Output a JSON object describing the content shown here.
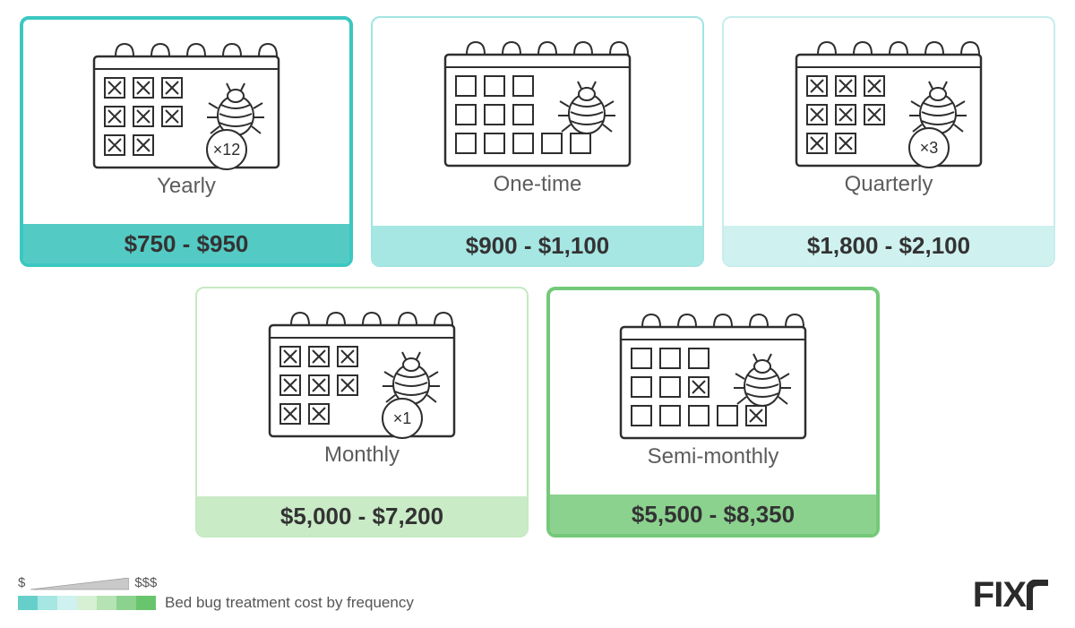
{
  "cards": [
    {
      "id": "yearly",
      "label": "Yearly",
      "price": "$750 - $950",
      "border_color": "#3bc7c1",
      "border_width": 4,
      "bar_color": "#54cac4",
      "multiplier": "×12",
      "day_pattern": "all_x"
    },
    {
      "id": "onetime",
      "label": "One-time",
      "price": "$900 - $1,100",
      "border_color": "#a1e4e1",
      "border_width": 2,
      "bar_color": "#a6e6e3",
      "multiplier": null,
      "day_pattern": "all_empty"
    },
    {
      "id": "quarterly",
      "label": "Quarterly",
      "price": "$1,800 - $2,100",
      "border_color": "#c6eeec",
      "border_width": 2,
      "bar_color": "#cff1ef",
      "multiplier": "×3",
      "day_pattern": "all_x"
    },
    {
      "id": "monthly",
      "label": "Monthly",
      "price": "$5,000 - $7,200",
      "border_color": "#c5e9c2",
      "border_width": 2,
      "bar_color": "#c9ebc6",
      "multiplier": "×1",
      "day_pattern": "all_x"
    },
    {
      "id": "semimonthly",
      "label": "Semi-monthly",
      "price": "$5,500 - $8,350",
      "border_color": "#74c979",
      "border_width": 4,
      "bar_color": "#8bd28f",
      "multiplier": null,
      "day_pattern": "semi"
    }
  ],
  "row_layout": [
    [
      0,
      1,
      2
    ],
    [
      3,
      4
    ]
  ],
  "legend": {
    "min": "$",
    "max": "$$$",
    "caption": "Bed bug treatment cost by frequency",
    "swatches": [
      "#67cfca",
      "#a6e6e3",
      "#cff1ef",
      "#d6f0d4",
      "#b6e3b3",
      "#8bd28f",
      "#69c56d"
    ]
  },
  "logo_text": "FIX",
  "colors": {
    "outline": "#2e2e2e",
    "text_label": "#5c5c5c",
    "text_price": "#333333"
  }
}
